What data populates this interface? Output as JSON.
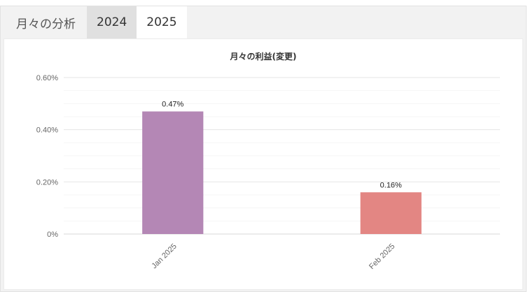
{
  "tabs": {
    "title": "月々の分析",
    "items": [
      {
        "label": "2024",
        "state": "hover"
      },
      {
        "label": "2025",
        "state": "active"
      }
    ]
  },
  "chart_data": {
    "type": "bar",
    "title": "月々の利益(変更)",
    "categories": [
      "Jan 2025",
      "Feb 2025"
    ],
    "values": [
      0.47,
      0.16
    ],
    "value_labels": [
      "0.47%",
      "0.16%"
    ],
    "colors": [
      "#b487b5",
      "#e38683"
    ],
    "ylim": [
      0,
      0.6
    ],
    "yticks": [
      {
        "value": 0,
        "label": "0%"
      },
      {
        "value": 0.2,
        "label": "0.20%"
      },
      {
        "value": 0.4,
        "label": "0.40%"
      },
      {
        "value": 0.6,
        "label": "0.60%"
      }
    ],
    "grid": true,
    "legend": "none"
  }
}
